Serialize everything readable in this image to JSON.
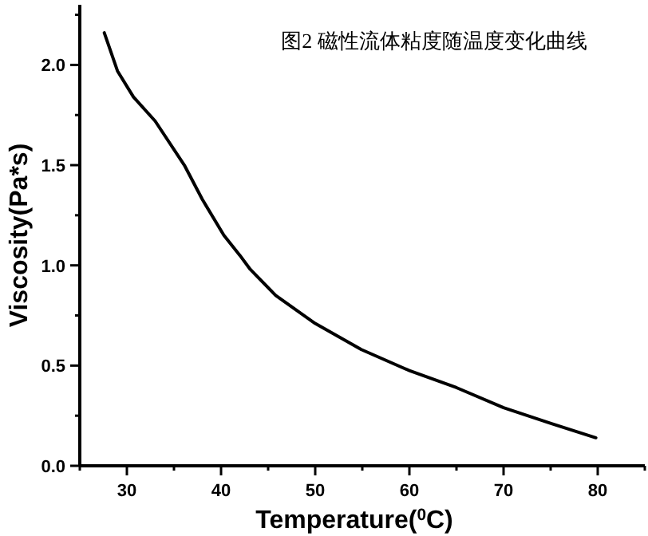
{
  "chart_data": {
    "type": "line",
    "title": "图2 磁性流体粘度随温度变化曲线",
    "xlabel": "Temperature($^{0}$C)",
    "ylabel": "Viscosity(Pa*s)",
    "x": [
      27.6,
      29,
      30.7,
      33,
      36.1,
      38,
      40.3,
      42,
      43.1,
      45.8,
      50,
      54.9,
      60,
      65,
      70,
      75.1,
      79.8
    ],
    "series": [
      {
        "color": "#000000",
        "values": [
          2.16,
          1.97,
          1.84,
          1.72,
          1.5,
          1.33,
          1.15,
          1.05,
          0.98,
          0.85,
          0.71,
          0.58,
          0.475,
          0.39,
          0.29,
          0.21,
          0.14
        ]
      }
    ],
    "xlim": [
      25,
      85
    ],
    "xticks": [
      30,
      40,
      50,
      60,
      70,
      80
    ],
    "ylim": [
      0,
      2.3
    ],
    "yticks": [
      {
        "value": 0,
        "label": "0.0"
      },
      {
        "value": 0.5,
        "label": "0.5"
      },
      {
        "value": 1,
        "label": "1.0"
      },
      {
        "value": 1.5,
        "label": "1.5"
      },
      {
        "value": 2,
        "label": "2.0"
      }
    ],
    "grid": false,
    "marker": "none",
    "line_style": "solid"
  }
}
